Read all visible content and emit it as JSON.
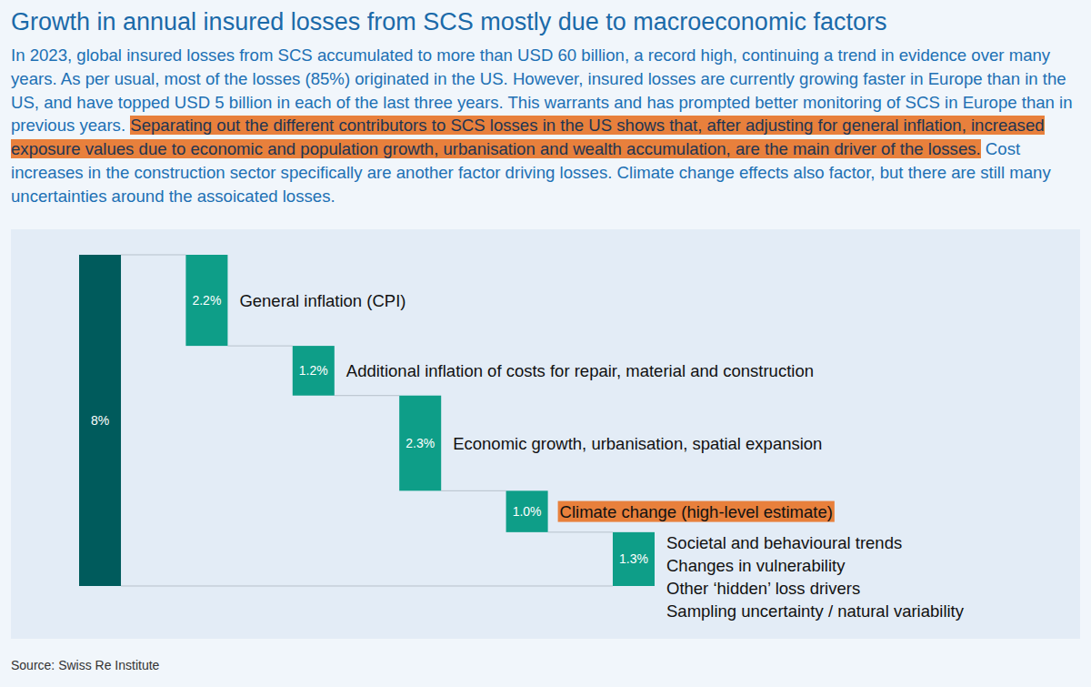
{
  "title": "Growth in annual insured losses from SCS mostly due to macroeconomic factors",
  "body": {
    "before": "In 2023, global insured losses from SCS accumulated to more than USD 60 billion, a record high, continuing a trend in evidence over many years. As per usual, most of the losses (85%) originated in the US. However, insured losses are currently growing faster in Europe than in the US, and have topped USD 5 billion in each of the last three years. This warrants and has prompted better monitoring of SCS in Europe than in previous years.",
    "highlight": "Separating out the different contributors to SCS losses in the US shows that, after adjusting for general inflation, increased exposure values due to economic and population growth, urbanisation and wealth accumulation, are the main driver of the losses.",
    "after": "Cost increases in the construction sector specifically are another factor driving losses. Climate change effects also factor, but there are still many uncertainties around the assoicated losses."
  },
  "source": "Source: Swiss Re Institute",
  "chart_data": {
    "type": "waterfall",
    "categories": [
      null,
      "General inflation (CPI)",
      "Additional inflation of costs for repair, material and construction",
      "Economic growth, urbanisation, spatial expansion",
      "Climate change (high-level estimate)",
      "Societal and behavioural trends\nChanges in vulnerability\nOther ‘hidden’ loss drivers\nSampling uncertainty / natural variability"
    ],
    "values": [
      8,
      2.2,
      1.2,
      2.3,
      1.0,
      1.3
    ],
    "value_labels": [
      "8%",
      "2.2%",
      "1.2%",
      "2.3%",
      "1.0%",
      "1.3%"
    ],
    "data_labels": true,
    "tick_labels": false,
    "colors": [
      "#005b5c",
      "#0e9e88",
      "#0e9e88",
      "#0e9e88",
      "#0e9e88",
      "#0e9e88"
    ]
  }
}
